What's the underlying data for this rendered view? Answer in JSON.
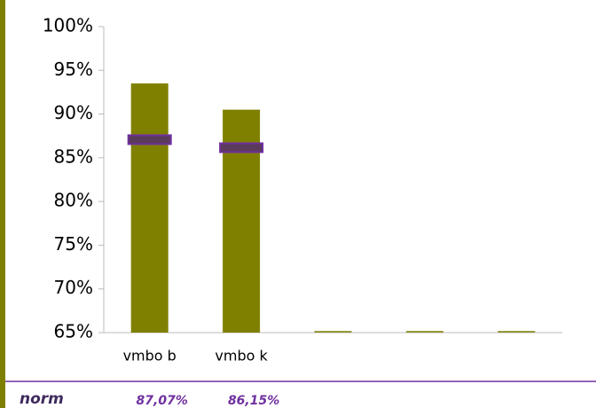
{
  "chart_data": {
    "type": "bar",
    "categories": [
      "vmbo b",
      "vmbo k",
      null,
      null,
      null
    ],
    "values": [
      93.5,
      90.5,
      null,
      null,
      null
    ],
    "color": "#808000",
    "norm": {
      "name": "norm",
      "color": "#5b3a5c",
      "border": "#7030a0",
      "values": [
        87.07,
        86.15,
        null,
        null,
        null
      ],
      "value_labels": [
        "87,07%",
        "86,15%",
        null,
        null,
        null
      ]
    },
    "ylim": [
      65,
      100
    ],
    "yticks": [
      {
        "value": 65,
        "label": "65%"
      },
      {
        "value": 70,
        "label": "70%"
      },
      {
        "value": 75,
        "label": "75%"
      },
      {
        "value": 80,
        "label": "80%"
      },
      {
        "value": 85,
        "label": "85%"
      },
      {
        "value": 90,
        "label": "90%"
      },
      {
        "value": 95,
        "label": "95%"
      },
      {
        "value": 100,
        "label": "100%"
      }
    ]
  }
}
